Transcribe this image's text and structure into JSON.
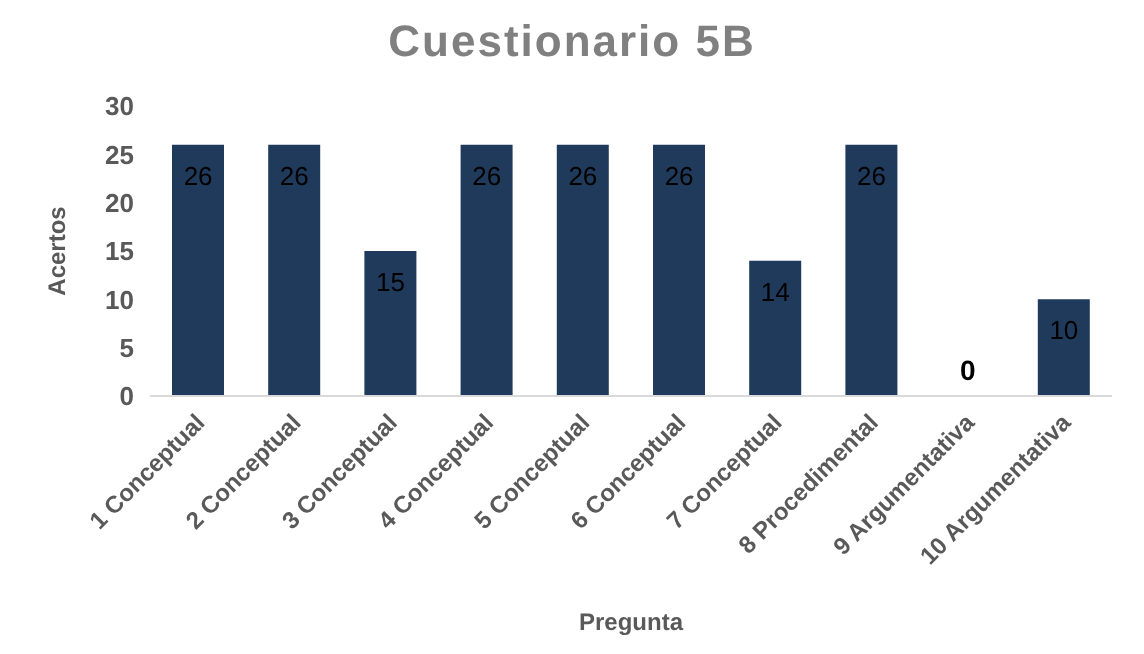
{
  "chart_data": {
    "type": "bar",
    "title": "Cuestionario 5B",
    "xlabel": "Pregunta",
    "ylabel": "Acertos",
    "categories": [
      "1 Conceptual",
      "2 Conceptual",
      "3 Conceptual",
      "4 Conceptual",
      "5 Conceptual",
      "6 Conceptual",
      "7 Conceptual",
      "8 Procedimental",
      "9 Argumentativa",
      "10 Argumentativa"
    ],
    "values": [
      26,
      26,
      15,
      26,
      26,
      26,
      14,
      26,
      0,
      10
    ],
    "color": "#203a5c",
    "ylim": [
      0,
      30
    ],
    "yticks": [
      0,
      5,
      10,
      15,
      20,
      25,
      30
    ],
    "grid": false,
    "data_labels": true
  }
}
